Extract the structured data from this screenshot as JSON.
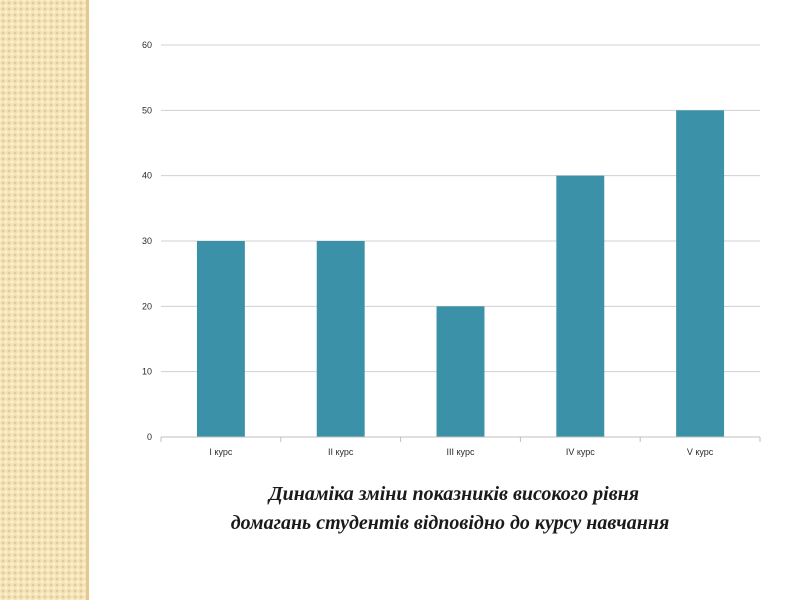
{
  "slide": {
    "caption_line1": "Динаміка зміни показників високого рівня",
    "caption_line2": "домагань студентів відповідно до курсу навчання",
    "accent_strip_color": "#f5e3b7"
  },
  "chart_data": {
    "type": "bar",
    "categories": [
      "I курс",
      "II курс",
      "III курс",
      "IV курс",
      "V курс"
    ],
    "values": [
      30,
      30,
      20,
      40,
      50
    ],
    "title": "",
    "xlabel": "",
    "ylabel": "",
    "ylim": [
      0,
      60
    ],
    "yticks": [
      0,
      10,
      20,
      30,
      40,
      50,
      60
    ],
    "grid": true,
    "legend": "none",
    "bar_color": "#3a91a8",
    "grid_color": "#d0d0d0"
  }
}
